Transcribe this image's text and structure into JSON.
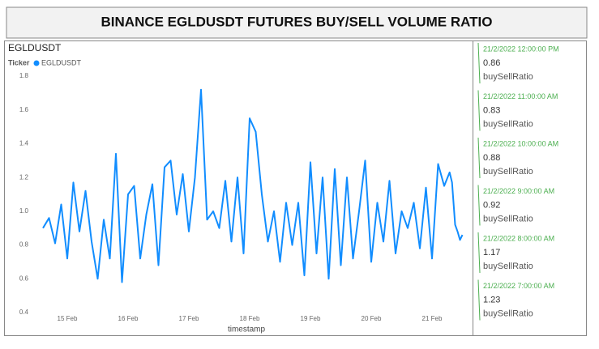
{
  "header": {
    "title": "BINANCE EGLDUSDT FUTURES BUY/SELL VOLUME RATIO"
  },
  "chart_data": {
    "type": "line",
    "title": "EGLDUSDT",
    "legend_title": "Ticker",
    "xlabel": "timestamp",
    "x": [
      14.6,
      14.7,
      14.8,
      14.9,
      15.0,
      15.1,
      15.2,
      15.3,
      15.4,
      15.5,
      15.6,
      15.7,
      15.8,
      15.9,
      16.0,
      16.1,
      16.2,
      16.3,
      16.4,
      16.5,
      16.6,
      16.7,
      16.8,
      16.9,
      17.0,
      17.1,
      17.2,
      17.3,
      17.4,
      17.5,
      17.6,
      17.7,
      17.8,
      17.9,
      18.0,
      18.1,
      18.2,
      18.3,
      18.4,
      18.5,
      18.6,
      18.7,
      18.8,
      18.9,
      19.0,
      19.1,
      19.2,
      19.3,
      19.4,
      19.5,
      19.6,
      19.7,
      19.8,
      19.9,
      20.0,
      20.1,
      20.2,
      20.3,
      20.4,
      20.5,
      20.6,
      20.7,
      20.8,
      20.9,
      21.0,
      21.1,
      21.2,
      21.29,
      21.33,
      21.38,
      21.42,
      21.46,
      21.5
    ],
    "series": [
      {
        "name": "EGLDUSDT",
        "color": "#118dff",
        "values": [
          0.9,
          0.96,
          0.81,
          1.04,
          0.72,
          1.17,
          0.88,
          1.12,
          0.82,
          0.6,
          0.95,
          0.72,
          1.34,
          0.58,
          1.1,
          1.15,
          0.72,
          0.98,
          1.16,
          0.68,
          1.26,
          1.3,
          0.98,
          1.22,
          0.88,
          1.2,
          1.72,
          0.95,
          1.0,
          0.9,
          1.18,
          0.82,
          1.2,
          0.75,
          1.55,
          1.47,
          1.1,
          0.82,
          1.0,
          0.7,
          1.05,
          0.8,
          1.05,
          0.62,
          1.29,
          0.75,
          1.2,
          0.6,
          1.25,
          0.68,
          1.2,
          0.72,
          1.0,
          1.3,
          0.7,
          1.05,
          0.82,
          1.18,
          0.75,
          1.0,
          0.9,
          1.05,
          0.78,
          1.14,
          0.72,
          1.28,
          1.15,
          1.23,
          1.17,
          0.92,
          0.88,
          0.83,
          0.86
        ]
      }
    ],
    "xlim": [
      14.4,
      21.6
    ],
    "xticks": [
      {
        "value": 15,
        "label": "15 Feb"
      },
      {
        "value": 16,
        "label": "16 Feb"
      },
      {
        "value": 17,
        "label": "17 Feb"
      },
      {
        "value": 18,
        "label": "18 Feb"
      },
      {
        "value": 19,
        "label": "19 Feb"
      },
      {
        "value": 20,
        "label": "20 Feb"
      },
      {
        "value": 21,
        "label": "21 Feb"
      }
    ],
    "ylim": [
      0.4,
      1.8
    ],
    "yticks": [
      0.4,
      0.6,
      0.8,
      {
        "value": 1,
        "label": "1.0"
      },
      1.2,
      1.4,
      1.6,
      1.8
    ]
  },
  "cards": [
    {
      "timestamp": "21/2/2022 12:00:00 PM",
      "value": 0.86,
      "label": "buySellRatio"
    },
    {
      "timestamp": "21/2/2022 11:00:00 AM",
      "value": 0.83,
      "label": "buySellRatio"
    },
    {
      "timestamp": "21/2/2022 10:00:00 AM",
      "value": 0.88,
      "label": "buySellRatio"
    },
    {
      "timestamp": "21/2/2022 9:00:00 AM",
      "value": 0.92,
      "label": "buySellRatio"
    },
    {
      "timestamp": "21/2/2022 8:00:00 AM",
      "value": 1.17,
      "label": "buySellRatio"
    },
    {
      "timestamp": "21/2/2022 7:00:00 AM",
      "value": 1.23,
      "label": "buySellRatio"
    }
  ]
}
